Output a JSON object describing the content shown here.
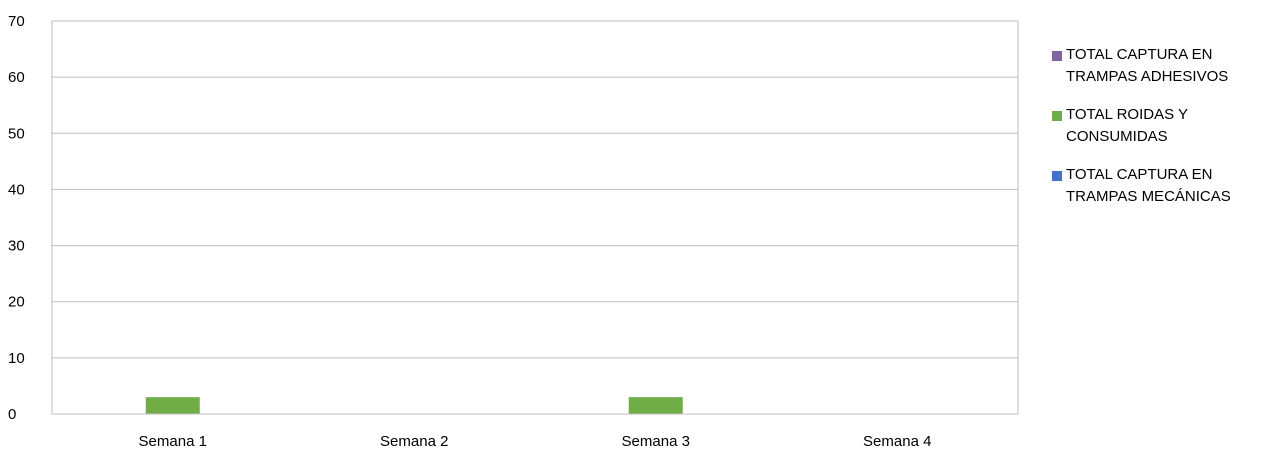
{
  "chart_data": {
    "type": "bar",
    "categories": [
      "Semana 1",
      "Semana 2",
      "Semana 3",
      "Semana 4"
    ],
    "series": [
      {
        "name": "TOTAL CAPTURA EN TRAMPAS  ADHESIVOS",
        "color": "#8064a2",
        "values": [
          0,
          0,
          0,
          0
        ]
      },
      {
        "name": "TOTAL ROIDAS Y CONSUMIDAS",
        "color": "#70ad47",
        "values": [
          3,
          0,
          3,
          0
        ]
      },
      {
        "name": "TOTAL CAPTURA EN TRAMPAS  MECÁNICAS",
        "color": "#4472c4",
        "values": [
          0,
          0,
          0,
          0
        ]
      }
    ],
    "ylim": [
      0,
      70
    ],
    "yticks": [
      0,
      10,
      20,
      30,
      40,
      50,
      60,
      70
    ],
    "grid": true,
    "legend_position": "right"
  }
}
